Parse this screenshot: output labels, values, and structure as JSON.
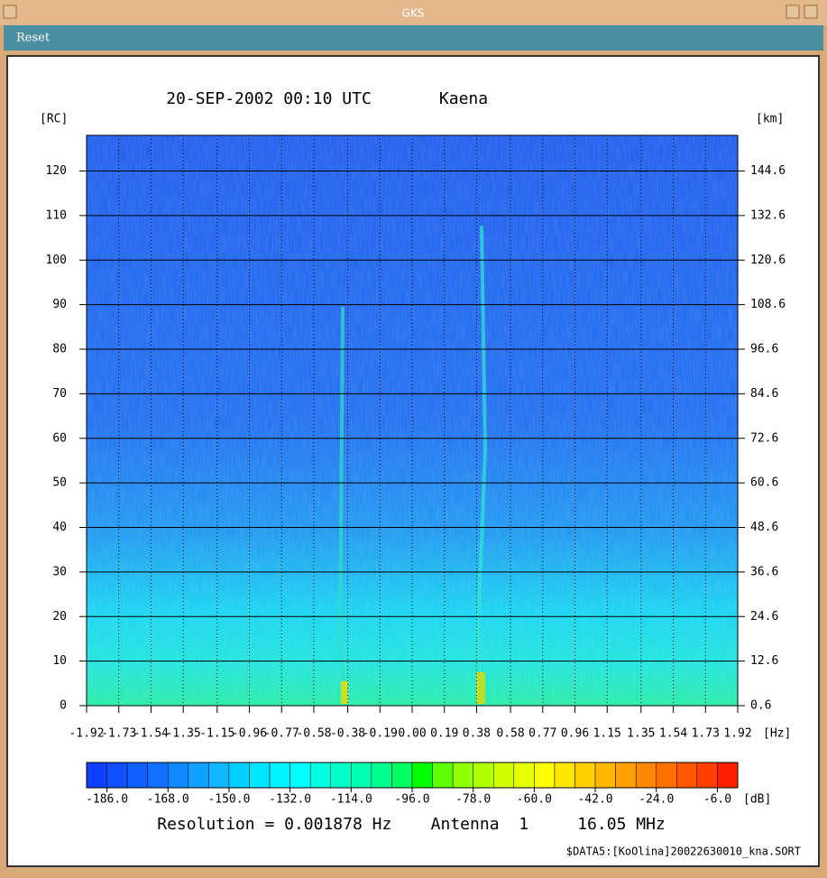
{
  "window": {
    "title": "GKS",
    "menu": [
      "Reset"
    ]
  },
  "chart_data": {
    "type": "spectrogram",
    "title": "20-SEP-2002 00:10 UTC",
    "site": "Kaena",
    "ylabel": "[RC]",
    "y2label": "[km]",
    "xlabel": "[Hz]",
    "xlim": [
      -1.92,
      1.92
    ],
    "xticks": [
      -1.92,
      -1.73,
      -1.54,
      -1.35,
      -1.15,
      -0.96,
      -0.77,
      -0.58,
      -0.38,
      -0.19,
      {
        "value": 0,
        "label": "0.00"
      },
      0.19,
      0.38,
      0.58,
      0.77,
      0.96,
      1.15,
      1.35,
      1.54,
      1.73,
      1.92
    ],
    "ylim": [
      0,
      128
    ],
    "yticks": [
      0,
      10,
      20,
      30,
      40,
      50,
      60,
      70,
      80,
      90,
      100,
      110,
      120
    ],
    "y2lim": [
      0.6,
      154.2
    ],
    "y2ticks": [
      0.6,
      12.6,
      24.6,
      36.6,
      48.6,
      60.6,
      72.6,
      84.6,
      96.6,
      108.6,
      120.6,
      132.6,
      144.6
    ],
    "grid": true,
    "colorbar": {
      "lim": [
        -192,
        0
      ],
      "label": "[dB]",
      "ticks": [
        {
          "value": -186,
          "label": "-186.0"
        },
        {
          "value": -168,
          "label": "-168.0"
        },
        {
          "value": -150,
          "label": "-150.0"
        },
        {
          "value": -132,
          "label": "-132.0"
        },
        {
          "value": -114,
          "label": "-114.0"
        },
        {
          "value": -96,
          "label": "-96.0"
        },
        {
          "value": -78,
          "label": "-78.0"
        },
        {
          "value": -60,
          "label": "-60.0"
        },
        {
          "value": -42,
          "label": "-42.0"
        },
        {
          "value": -24,
          "label": "-24.0"
        },
        {
          "value": -6,
          "label": "-6.0"
        }
      ],
      "colors": [
        "#1040ff",
        "#1050ff",
        "#1060ff",
        "#1070ff",
        "#1088ff",
        "#10a0ff",
        "#10b8ff",
        "#00d0ff",
        "#00e4ff",
        "#00f4ff",
        "#00ffff",
        "#00ffe0",
        "#00ffc8",
        "#00ffb0",
        "#00ff90",
        "#00ff60",
        "#00ff00",
        "#60ff00",
        "#90ff00",
        "#b0ff00",
        "#d0ff00",
        "#e8ff00",
        "#ffff00",
        "#ffe800",
        "#ffd000",
        "#ffb800",
        "#ffa000",
        "#ff8800",
        "#ff7000",
        "#ff5800",
        "#ff4000",
        "#ff2000"
      ]
    },
    "footer": "Resolution = 0.001878 Hz    Antenna  1     16.05 MHz",
    "file": "$DATA5:[KoOlina]20022630010_kna.SORT"
  }
}
